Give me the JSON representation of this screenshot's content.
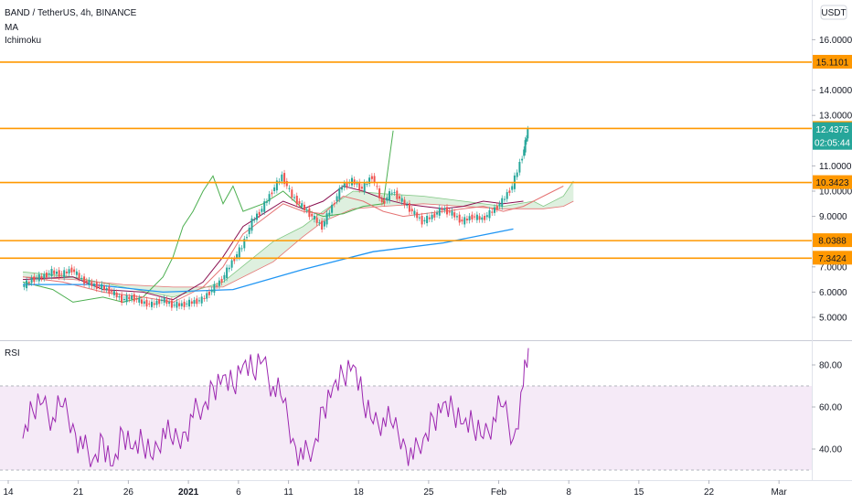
{
  "header": {
    "symbol": "BAND / TetherUS, 4h, BINANCE",
    "indicator_ma": "MA",
    "indicator_ichimoku": "Ichimoku",
    "currency": "USDT"
  },
  "rsi_panel": {
    "title": "RSI",
    "ticks": [
      "80.00",
      "60.00",
      "40.00"
    ]
  },
  "colors": {
    "up": "#26a69a",
    "down": "#ef5350",
    "horizontal": "#ff9800",
    "ma": "#2196f3",
    "lagging": "#4caf50",
    "base": "#880e4f",
    "conversion": "#e57373",
    "cloud_up": "#c8e6c9",
    "rsi": "#9c27b0",
    "rsi_band": "#f3e5f5",
    "price_tag": "#26a69a"
  },
  "chart_data": {
    "type": "line",
    "title": "BAND / TetherUS, 4h, BINANCE",
    "x_axis": {
      "ticks": [
        {
          "label": "14",
          "day": 0
        },
        {
          "label": "21",
          "day": 7
        },
        {
          "label": "26",
          "day": 12
        },
        {
          "label": "2021",
          "day": 18,
          "bold": true
        },
        {
          "label": "6",
          "day": 23
        },
        {
          "label": "11",
          "day": 28
        },
        {
          "label": "18",
          "day": 35
        },
        {
          "label": "25",
          "day": 42
        },
        {
          "label": "Feb",
          "day": 49
        },
        {
          "label": "8",
          "day": 56
        },
        {
          "label": "15",
          "day": 63
        },
        {
          "label": "22",
          "day": 70
        },
        {
          "label": "Mar",
          "day": 77
        }
      ]
    },
    "price_axis": {
      "ticks": [
        {
          "label": "16.0000",
          "value": 16
        },
        {
          "label": "14.0000",
          "value": 14
        },
        {
          "label": "13.0000",
          "value": 13
        },
        {
          "label": "11.0000",
          "value": 11
        },
        {
          "label": "10.0000",
          "value": 10
        },
        {
          "label": "9.0000",
          "value": 9
        },
        {
          "label": "7.0000",
          "value": 7
        },
        {
          "label": "6.0000",
          "value": 6
        },
        {
          "label": "5.0000",
          "value": 5
        }
      ]
    },
    "horizontal_levels": [
      {
        "label": "15.1101",
        "value": 15.1101
      },
      {
        "label": "12.4851",
        "value": 12.4851
      },
      {
        "label": "10.3423",
        "value": 10.3423
      },
      {
        "label": "8.0388",
        "value": 8.0388
      },
      {
        "label": "7.3424",
        "value": 7.3424
      }
    ],
    "last_price": {
      "label": "12.4375",
      "value": 12.4375,
      "countdown": "02:05:44"
    },
    "ma_series": {
      "name": "MA",
      "points": [
        [
          0,
          6.3
        ],
        [
          7,
          6.3
        ],
        [
          14,
          6.0
        ],
        [
          21,
          6.1
        ],
        [
          28,
          6.9
        ],
        [
          35,
          7.6
        ],
        [
          42,
          7.95
        ],
        [
          49,
          8.5
        ]
      ]
    },
    "close_series": {
      "name": "Close",
      "points": [
        [
          0,
          6.2
        ],
        [
          1,
          6.5
        ],
        [
          2,
          6.6
        ],
        [
          3,
          6.8
        ],
        [
          4,
          6.7
        ],
        [
          5,
          6.9
        ],
        [
          6,
          6.5
        ],
        [
          7,
          6.3
        ],
        [
          8,
          6.2
        ],
        [
          9,
          6.0
        ],
        [
          10,
          5.7
        ],
        [
          11,
          5.8
        ],
        [
          12,
          5.6
        ],
        [
          13,
          5.5
        ],
        [
          14,
          5.7
        ],
        [
          15,
          5.5
        ],
        [
          16,
          5.5
        ],
        [
          17,
          5.6
        ],
        [
          18,
          5.7
        ],
        [
          19,
          6.1
        ],
        [
          20,
          6.5
        ],
        [
          21,
          7.2
        ],
        [
          22,
          7.8
        ],
        [
          23,
          8.8
        ],
        [
          24,
          9.3
        ],
        [
          25,
          10.0
        ],
        [
          26,
          10.6
        ],
        [
          27,
          9.8
        ],
        [
          28,
          9.4
        ],
        [
          29,
          9.0
        ],
        [
          30,
          8.6
        ],
        [
          31,
          9.4
        ],
        [
          32,
          10.2
        ],
        [
          33,
          10.4
        ],
        [
          34,
          10.1
        ],
        [
          35,
          10.6
        ],
        [
          36,
          9.5
        ],
        [
          37,
          10.0
        ],
        [
          38,
          9.6
        ],
        [
          39,
          9.2
        ],
        [
          40,
          8.8
        ],
        [
          41,
          9.0
        ],
        [
          42,
          9.3
        ],
        [
          43,
          9.1
        ],
        [
          44,
          8.8
        ],
        [
          45,
          9.0
        ],
        [
          46,
          8.9
        ],
        [
          47,
          9.2
        ],
        [
          48,
          9.6
        ],
        [
          49,
          10.2
        ],
        [
          50,
          11.4
        ],
        [
          50.5,
          12.4
        ]
      ]
    },
    "ichimoku": {
      "lagging_span": [
        [
          0,
          6.4
        ],
        [
          3,
          6.1
        ],
        [
          5,
          5.6
        ],
        [
          8,
          5.8
        ],
        [
          10,
          5.6
        ],
        [
          12,
          5.8
        ],
        [
          14,
          6.6
        ],
        [
          15,
          7.4
        ],
        [
          16,
          8.6
        ],
        [
          17,
          9.2
        ],
        [
          18,
          10.0
        ],
        [
          19,
          10.6
        ],
        [
          20,
          9.5
        ],
        [
          21,
          10.2
        ],
        [
          22,
          9.2
        ],
        [
          24,
          9.5
        ],
        [
          26,
          10.0
        ],
        [
          28,
          9.3
        ],
        [
          30,
          9.0
        ],
        [
          32,
          9.1
        ],
        [
          34,
          9.4
        ],
        [
          36,
          9.5
        ],
        [
          37,
          12.4
        ]
      ],
      "base_line": [
        [
          0,
          6.5
        ],
        [
          5,
          6.6
        ],
        [
          8,
          6.1
        ],
        [
          12,
          6.0
        ],
        [
          15,
          5.7
        ],
        [
          18,
          6.4
        ],
        [
          20,
          7.4
        ],
        [
          22,
          8.6
        ],
        [
          24,
          9.1
        ],
        [
          26,
          9.6
        ],
        [
          28,
          9.3
        ],
        [
          30,
          9.6
        ],
        [
          32,
          10.2
        ],
        [
          34,
          10.0
        ],
        [
          36,
          9.7
        ],
        [
          38,
          9.5
        ],
        [
          40,
          9.4
        ],
        [
          42,
          9.3
        ],
        [
          44,
          9.4
        ],
        [
          46,
          9.6
        ],
        [
          48,
          9.5
        ],
        [
          50,
          9.6
        ]
      ],
      "conversion_line": [
        [
          0,
          6.6
        ],
        [
          4,
          6.4
        ],
        [
          8,
          6.0
        ],
        [
          12,
          5.8
        ],
        [
          15,
          5.6
        ],
        [
          18,
          6.2
        ],
        [
          20,
          7.0
        ],
        [
          22,
          8.3
        ],
        [
          24,
          8.9
        ],
        [
          26,
          9.5
        ],
        [
          28,
          9.2
        ],
        [
          30,
          9.1
        ],
        [
          32,
          9.8
        ],
        [
          34,
          9.6
        ],
        [
          36,
          9.2
        ],
        [
          38,
          9.0
        ],
        [
          40,
          9.1
        ],
        [
          42,
          9.2
        ],
        [
          44,
          9.3
        ],
        [
          46,
          9.4
        ],
        [
          48,
          9.2
        ],
        [
          50,
          9.4
        ],
        [
          52,
          9.8
        ],
        [
          54,
          10.2
        ]
      ],
      "span_a": [
        [
          0,
          6.8
        ],
        [
          5,
          6.6
        ],
        [
          10,
          6.2
        ],
        [
          15,
          5.8
        ],
        [
          20,
          6.4
        ],
        [
          25,
          8.0
        ],
        [
          28,
          8.6
        ],
        [
          30,
          9.2
        ],
        [
          33,
          10.0
        ],
        [
          36,
          9.9
        ],
        [
          40,
          9.8
        ],
        [
          44,
          9.6
        ],
        [
          48,
          9.4
        ],
        [
          51,
          9.6
        ],
        [
          52,
          9.4
        ],
        [
          54,
          9.8
        ],
        [
          55,
          10.4
        ]
      ],
      "span_b": [
        [
          0,
          6.6
        ],
        [
          5,
          6.5
        ],
        [
          10,
          6.3
        ],
        [
          15,
          6.2
        ],
        [
          20,
          6.2
        ],
        [
          25,
          7.2
        ],
        [
          28,
          8.2
        ],
        [
          30,
          8.8
        ],
        [
          33,
          9.3
        ],
        [
          36,
          9.4
        ],
        [
          40,
          9.5
        ],
        [
          44,
          9.4
        ],
        [
          48,
          9.3
        ],
        [
          51,
          9.3
        ],
        [
          52,
          9.3
        ],
        [
          54,
          9.4
        ],
        [
          55,
          9.6
        ]
      ]
    },
    "rsi": {
      "name": "RSI",
      "overbought": 70,
      "oversold": 30,
      "points": [
        [
          0,
          45
        ],
        [
          1,
          58
        ],
        [
          2,
          62
        ],
        [
          3,
          55
        ],
        [
          4,
          60
        ],
        [
          5,
          52
        ],
        [
          6,
          40
        ],
        [
          7,
          35
        ],
        [
          8,
          45
        ],
        [
          9,
          32
        ],
        [
          10,
          48
        ],
        [
          11,
          40
        ],
        [
          12,
          42
        ],
        [
          13,
          35
        ],
        [
          14,
          50
        ],
        [
          15,
          42
        ],
        [
          16,
          48
        ],
        [
          17,
          55
        ],
        [
          18,
          60
        ],
        [
          19,
          70
        ],
        [
          20,
          75
        ],
        [
          21,
          70
        ],
        [
          22,
          80
        ],
        [
          23,
          76
        ],
        [
          24,
          82
        ],
        [
          25,
          70
        ],
        [
          26,
          62
        ],
        [
          27,
          45
        ],
        [
          28,
          35
        ],
        [
          29,
          40
        ],
        [
          30,
          60
        ],
        [
          31,
          70
        ],
        [
          32,
          75
        ],
        [
          33,
          80
        ],
        [
          34,
          62
        ],
        [
          35,
          52
        ],
        [
          36,
          55
        ],
        [
          37,
          50
        ],
        [
          38,
          45
        ],
        [
          39,
          35
        ],
        [
          40,
          45
        ],
        [
          41,
          55
        ],
        [
          42,
          62
        ],
        [
          43,
          58
        ],
        [
          44,
          52
        ],
        [
          45,
          50
        ],
        [
          46,
          45
        ],
        [
          47,
          55
        ],
        [
          48,
          60
        ],
        [
          49,
          45
        ],
        [
          50,
          70
        ],
        [
          50.5,
          88
        ]
      ]
    }
  }
}
